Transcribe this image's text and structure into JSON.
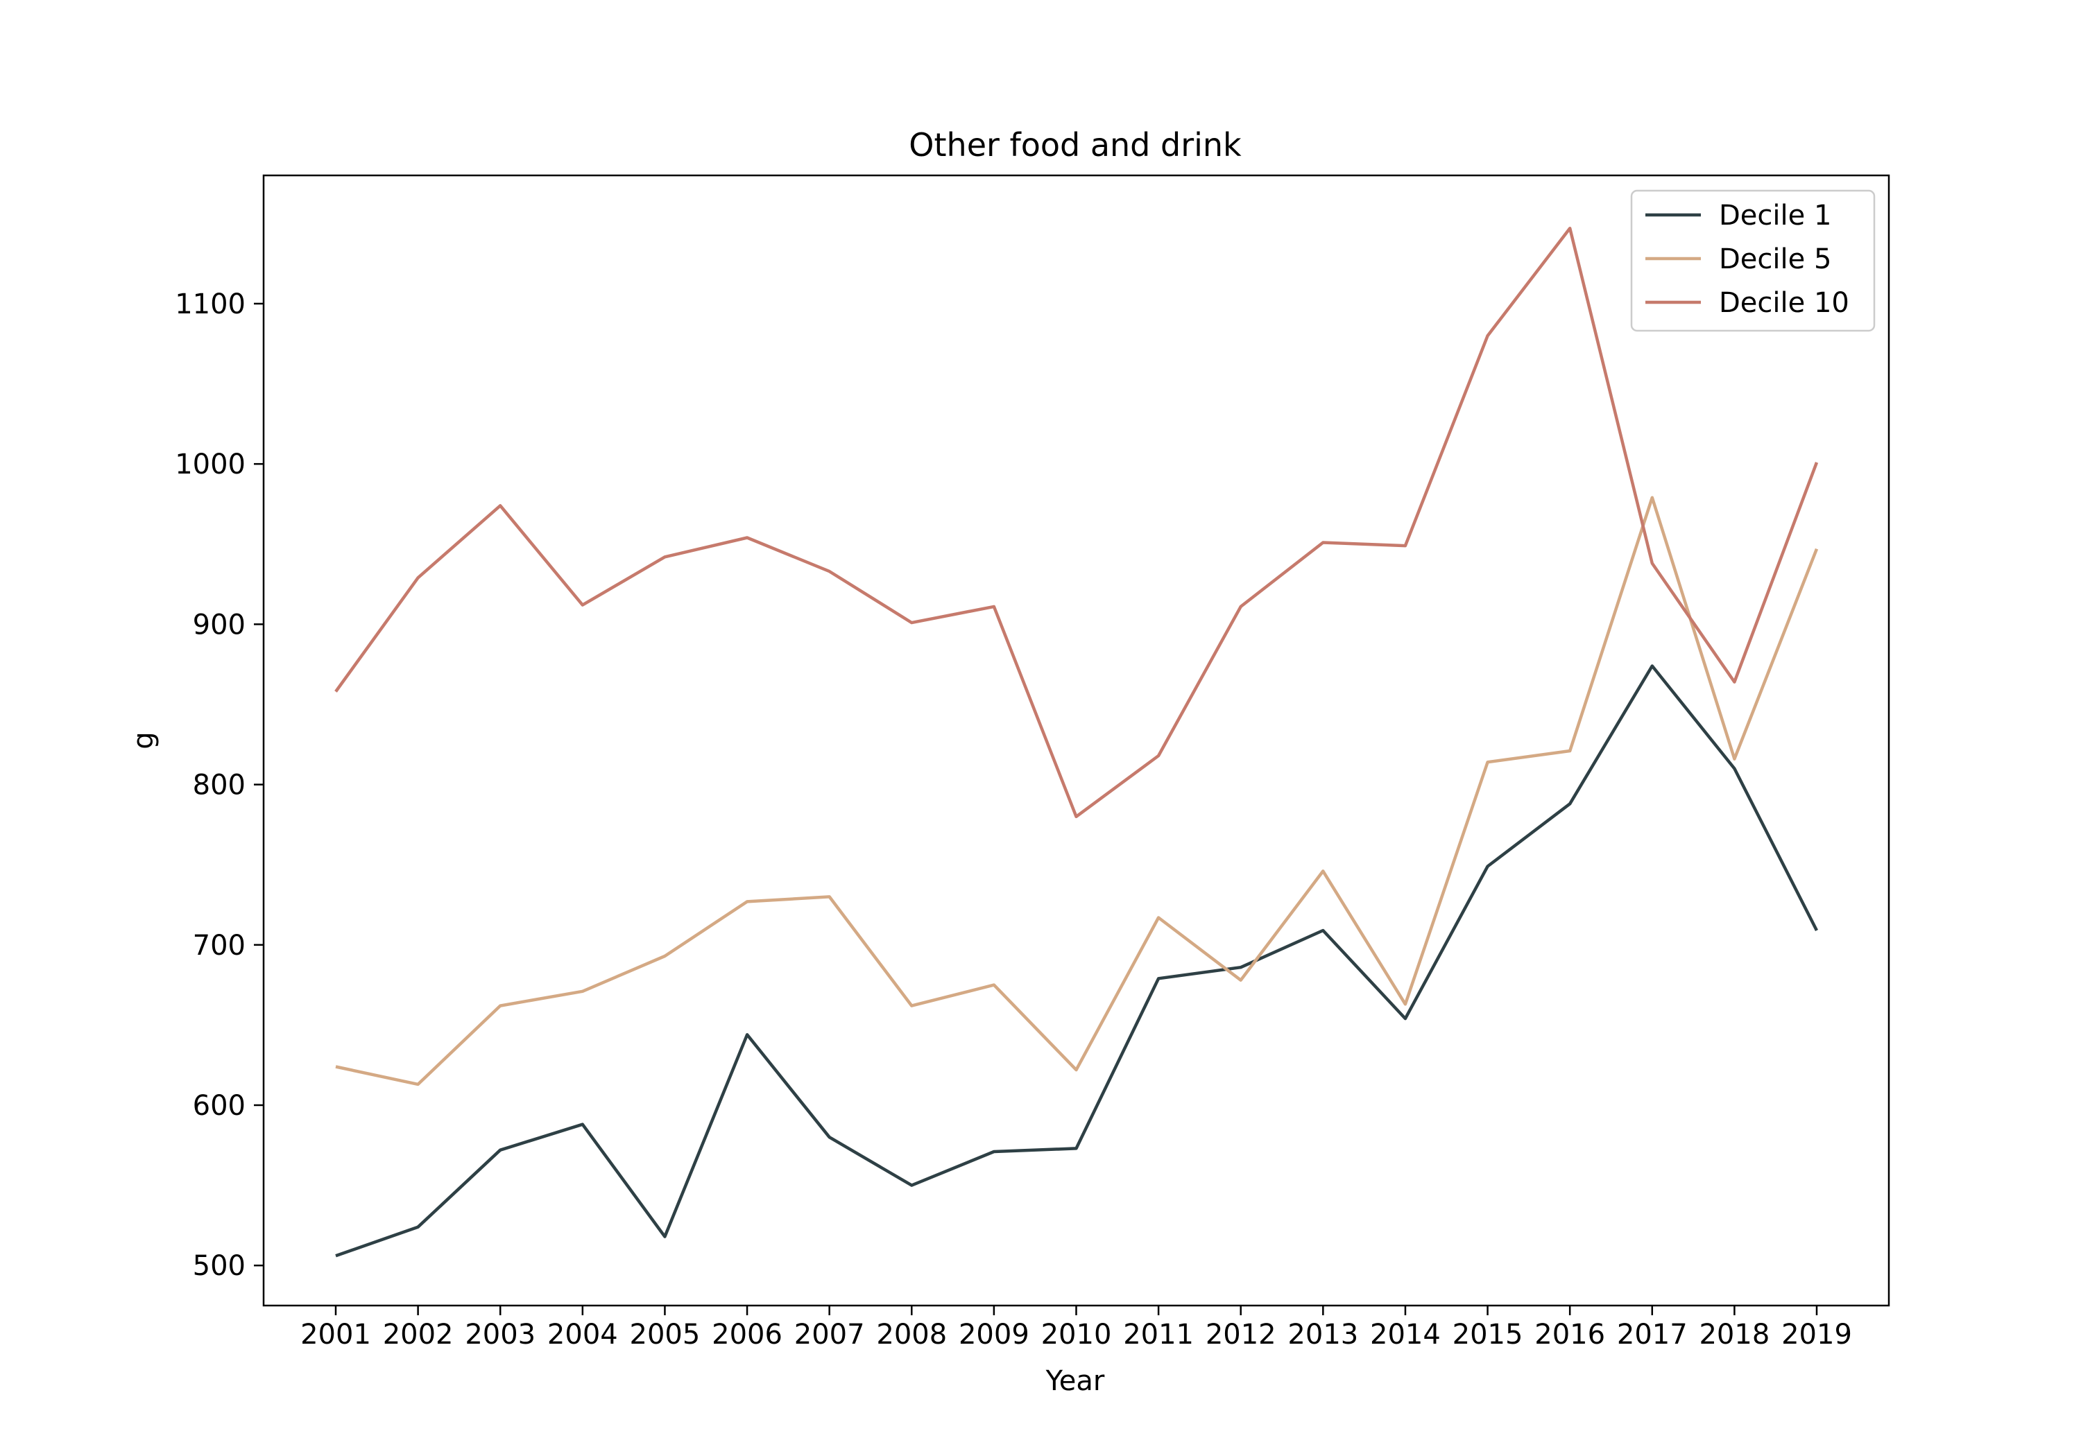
{
  "chart_data": {
    "type": "line",
    "title": "Other food and drink",
    "xlabel": "Year",
    "ylabel": "g",
    "x": [
      "2001",
      "2002",
      "2003",
      "2004",
      "2005",
      "2006",
      "2007",
      "2008",
      "2009",
      "2010",
      "2011",
      "2012",
      "2013",
      "2014",
      "2015",
      "2016",
      "2017",
      "2018",
      "2019"
    ],
    "yticks": [
      500,
      600,
      700,
      800,
      900,
      1000,
      1100
    ],
    "ylim": [
      475,
      1180
    ],
    "grid": false,
    "legend_position": "top-right",
    "series": [
      {
        "name": "Decile 1",
        "color": "#2e4045",
        "values": [
          506,
          524,
          572,
          588,
          518,
          644,
          580,
          550,
          571,
          573,
          679,
          686,
          709,
          654,
          749,
          788,
          874,
          810,
          709
        ]
      },
      {
        "name": "Decile 5",
        "color": "#d4a984",
        "values": [
          624,
          613,
          662,
          671,
          693,
          727,
          730,
          662,
          675,
          622,
          717,
          678,
          746,
          663,
          814,
          821,
          979,
          816,
          947
        ]
      },
      {
        "name": "Decile 10",
        "color": "#c67a6c",
        "values": [
          858,
          929,
          974,
          912,
          942,
          954,
          933,
          901,
          911,
          780,
          818,
          911,
          951,
          949,
          1080,
          1147,
          938,
          864,
          1001
        ]
      }
    ]
  }
}
